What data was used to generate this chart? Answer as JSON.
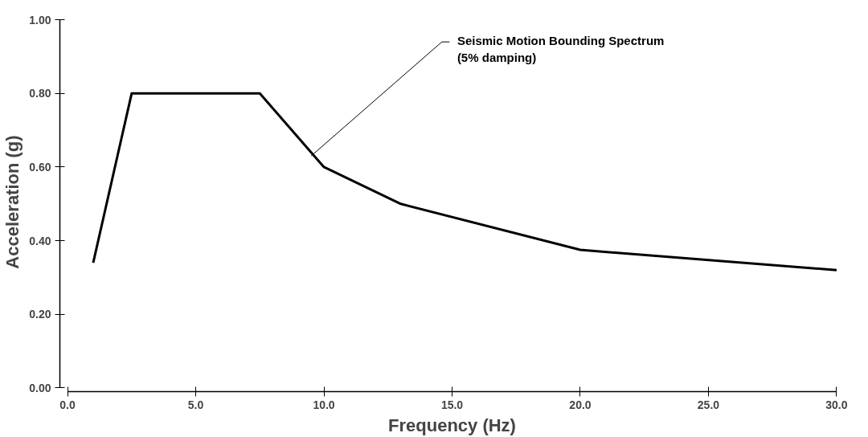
{
  "chart_data": {
    "type": "line",
    "xlabel": "Frequency (Hz)",
    "ylabel": "Acceleration (g)",
    "x": [
      1.0,
      2.5,
      7.5,
      10.0,
      13.0,
      20.0,
      30.0
    ],
    "values": [
      0.34,
      0.8,
      0.8,
      0.6,
      0.5,
      0.375,
      0.32
    ],
    "color": "#000000",
    "grid": false,
    "marker": "none",
    "line_style": "solid",
    "xlim": [
      0,
      30
    ],
    "ylim": [
      0,
      1
    ],
    "xticks": [
      {
        "value": 0,
        "label": "0.0"
      },
      {
        "value": 5,
        "label": "5.0"
      },
      {
        "value": 10,
        "label": "10.0"
      },
      {
        "value": 15,
        "label": "15.0"
      },
      {
        "value": 20,
        "label": "20.0"
      },
      {
        "value": 25,
        "label": "25.0"
      },
      {
        "value": 30,
        "label": "30.0"
      }
    ],
    "yticks": [
      {
        "value": 0,
        "label": "0.00"
      },
      {
        "value": 0.2,
        "label": "0.20"
      },
      {
        "value": 0.4,
        "label": "0.40"
      },
      {
        "value": 0.6,
        "label": "0.60"
      },
      {
        "value": 0.8,
        "label": "0.80"
      },
      {
        "value": 1.0,
        "label": "1.00"
      }
    ],
    "annotations": [
      {
        "text": "Seismic Motion Bounding Spectrum\n(5% damping)",
        "x": 9.5,
        "y": 0.63
      }
    ]
  }
}
